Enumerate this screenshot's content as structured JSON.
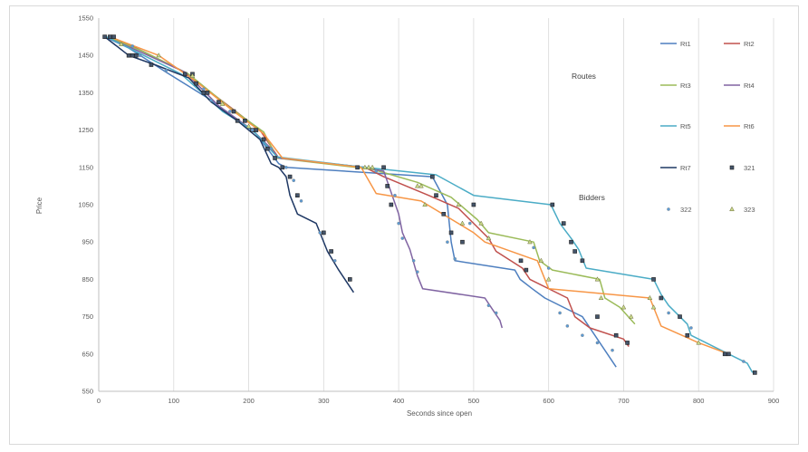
{
  "chart_data": {
    "type": "line",
    "title": "",
    "xlabel": "Seconds since open",
    "ylabel": "Price",
    "xlim": [
      0,
      900
    ],
    "ylim": [
      550,
      1550
    ],
    "x_ticks": [
      0,
      100,
      200,
      300,
      400,
      500,
      600,
      700,
      800,
      900
    ],
    "y_ticks": [
      550,
      650,
      750,
      850,
      950,
      1050,
      1150,
      1250,
      1350,
      1450,
      1550
    ],
    "grid": "vertical",
    "legend_position": "right",
    "annotations": [
      "Routes",
      "Bidders"
    ],
    "series": [
      {
        "name": "Rt1",
        "color": "#4e7fbf",
        "kind": "route",
        "points": [
          [
            8,
            1500
          ],
          [
            40,
            1470
          ],
          [
            90,
            1405
          ],
          [
            150,
            1330
          ],
          [
            210,
            1240
          ],
          [
            240,
            1160
          ],
          [
            250,
            1150
          ],
          [
            445,
            1125
          ],
          [
            465,
            1050
          ],
          [
            470,
            950
          ],
          [
            475,
            900
          ],
          [
            555,
            875
          ],
          [
            562,
            850
          ],
          [
            578,
            825
          ],
          [
            595,
            800
          ],
          [
            645,
            750
          ],
          [
            690,
            615
          ]
        ]
      },
      {
        "name": "Rt2",
        "color": "#c0504d",
        "kind": "route",
        "points": [
          [
            15,
            1500
          ],
          [
            50,
            1470
          ],
          [
            110,
            1410
          ],
          [
            170,
            1320
          ],
          [
            215,
            1250
          ],
          [
            240,
            1175
          ],
          [
            355,
            1150
          ],
          [
            380,
            1125
          ],
          [
            440,
            1075
          ],
          [
            480,
            1040
          ],
          [
            500,
            1000
          ],
          [
            520,
            960
          ],
          [
            530,
            925
          ],
          [
            565,
            880
          ],
          [
            575,
            850
          ],
          [
            625,
            800
          ],
          [
            635,
            750
          ],
          [
            655,
            720
          ],
          [
            700,
            690
          ],
          [
            707,
            670
          ]
        ]
      },
      {
        "name": "Rt3",
        "color": "#9bbb59",
        "kind": "route",
        "points": [
          [
            12,
            1500
          ],
          [
            60,
            1460
          ],
          [
            120,
            1400
          ],
          [
            175,
            1310
          ],
          [
            220,
            1245
          ],
          [
            238,
            1175
          ],
          [
            365,
            1145
          ],
          [
            425,
            1110
          ],
          [
            470,
            1070
          ],
          [
            505,
            1010
          ],
          [
            520,
            975
          ],
          [
            580,
            950
          ],
          [
            588,
            900
          ],
          [
            605,
            875
          ],
          [
            668,
            850
          ],
          [
            675,
            800
          ],
          [
            695,
            775
          ],
          [
            715,
            730
          ]
        ]
      },
      {
        "name": "Rt4",
        "color": "#8064a2",
        "kind": "route",
        "points": [
          [
            15,
            1495
          ],
          [
            55,
            1460
          ],
          [
            115,
            1405
          ],
          [
            160,
            1315
          ],
          [
            205,
            1250
          ],
          [
            230,
            1200
          ],
          [
            240,
            1175
          ],
          [
            355,
            1150
          ],
          [
            380,
            1140
          ],
          [
            400,
            1025
          ],
          [
            405,
            975
          ],
          [
            415,
            930
          ],
          [
            425,
            860
          ],
          [
            432,
            825
          ],
          [
            515,
            800
          ],
          [
            525,
            770
          ],
          [
            535,
            740
          ],
          [
            538,
            720
          ]
        ]
      },
      {
        "name": "Rt5",
        "color": "#4bacc6",
        "kind": "route",
        "points": [
          [
            10,
            1500
          ],
          [
            50,
            1460
          ],
          [
            110,
            1400
          ],
          [
            165,
            1300
          ],
          [
            205,
            1250
          ],
          [
            238,
            1178
          ],
          [
            355,
            1150
          ],
          [
            450,
            1130
          ],
          [
            500,
            1075
          ],
          [
            603,
            1050
          ],
          [
            615,
            1000
          ],
          [
            630,
            960
          ],
          [
            640,
            930
          ],
          [
            650,
            880
          ],
          [
            740,
            850
          ],
          [
            750,
            810
          ],
          [
            760,
            780
          ],
          [
            785,
            730
          ],
          [
            790,
            700
          ],
          [
            865,
            625
          ],
          [
            872,
            600
          ]
        ]
      },
      {
        "name": "Rt6",
        "color": "#f79646",
        "kind": "route",
        "points": [
          [
            15,
            1500
          ],
          [
            80,
            1450
          ],
          [
            130,
            1380
          ],
          [
            180,
            1300
          ],
          [
            220,
            1240
          ],
          [
            245,
            1175
          ],
          [
            350,
            1150
          ],
          [
            370,
            1080
          ],
          [
            430,
            1060
          ],
          [
            500,
            975
          ],
          [
            515,
            950
          ],
          [
            585,
            900
          ],
          [
            600,
            825
          ],
          [
            735,
            800
          ],
          [
            750,
            725
          ],
          [
            800,
            680
          ],
          [
            840,
            650
          ]
        ]
      },
      {
        "name": "Rt7",
        "color": "#1f3864",
        "kind": "route",
        "points": [
          [
            8,
            1500
          ],
          [
            40,
            1450
          ],
          [
            75,
            1425
          ],
          [
            120,
            1390
          ],
          [
            150,
            1325
          ],
          [
            185,
            1275
          ],
          [
            215,
            1225
          ],
          [
            230,
            1160
          ],
          [
            240,
            1150
          ],
          [
            250,
            1125
          ],
          [
            255,
            1075
          ],
          [
            265,
            1025
          ],
          [
            290,
            1000
          ],
          [
            305,
            925
          ],
          [
            320,
            875
          ],
          [
            340,
            815
          ]
        ]
      },
      {
        "name": "321",
        "color": "#44546a",
        "kind": "bidder",
        "marker": "square",
        "points": [
          [
            8,
            1500
          ],
          [
            15,
            1500
          ],
          [
            20,
            1500
          ],
          [
            40,
            1450
          ],
          [
            45,
            1450
          ],
          [
            50,
            1450
          ],
          [
            70,
            1425
          ],
          [
            115,
            1400
          ],
          [
            125,
            1400
          ],
          [
            130,
            1375
          ],
          [
            140,
            1350
          ],
          [
            145,
            1350
          ],
          [
            160,
            1325
          ],
          [
            180,
            1300
          ],
          [
            185,
            1275
          ],
          [
            195,
            1275
          ],
          [
            205,
            1250
          ],
          [
            210,
            1250
          ],
          [
            220,
            1225
          ],
          [
            225,
            1200
          ],
          [
            235,
            1175
          ],
          [
            245,
            1150
          ],
          [
            255,
            1125
          ],
          [
            265,
            1075
          ],
          [
            300,
            975
          ],
          [
            310,
            925
          ],
          [
            335,
            850
          ],
          [
            345,
            1150
          ],
          [
            380,
            1150
          ],
          [
            385,
            1100
          ],
          [
            390,
            1050
          ],
          [
            445,
            1125
          ],
          [
            450,
            1075
          ],
          [
            460,
            1025
          ],
          [
            470,
            975
          ],
          [
            485,
            950
          ],
          [
            500,
            1050
          ],
          [
            563,
            900
          ],
          [
            570,
            875
          ],
          [
            605,
            1050
          ],
          [
            620,
            1000
          ],
          [
            630,
            950
          ],
          [
            635,
            925
          ],
          [
            645,
            900
          ],
          [
            665,
            750
          ],
          [
            690,
            700
          ],
          [
            705,
            680
          ],
          [
            740,
            850
          ],
          [
            750,
            800
          ],
          [
            775,
            750
          ],
          [
            785,
            700
          ],
          [
            835,
            650
          ],
          [
            840,
            650
          ],
          [
            875,
            600
          ]
        ]
      },
      {
        "name": "322",
        "color": "#5b9bd5",
        "kind": "bidder",
        "marker": "circle",
        "points": [
          [
            30,
            1480
          ],
          [
            45,
            1475
          ],
          [
            55,
            1450
          ],
          [
            90,
            1410
          ],
          [
            140,
            1360
          ],
          [
            150,
            1330
          ],
          [
            175,
            1300
          ],
          [
            205,
            1250
          ],
          [
            230,
            1200
          ],
          [
            250,
            1150
          ],
          [
            260,
            1115
          ],
          [
            270,
            1060
          ],
          [
            295,
            975
          ],
          [
            315,
            900
          ],
          [
            370,
            1140
          ],
          [
            395,
            1075
          ],
          [
            400,
            1000
          ],
          [
            405,
            960
          ],
          [
            420,
            900
          ],
          [
            425,
            870
          ],
          [
            520,
            780
          ],
          [
            530,
            760
          ],
          [
            465,
            950
          ],
          [
            475,
            905
          ],
          [
            495,
            1000
          ],
          [
            520,
            960
          ],
          [
            580,
            935
          ],
          [
            600,
            880
          ],
          [
            615,
            760
          ],
          [
            625,
            725
          ],
          [
            645,
            700
          ],
          [
            665,
            680
          ],
          [
            685,
            660
          ],
          [
            760,
            760
          ],
          [
            790,
            720
          ],
          [
            860,
            630
          ]
        ]
      },
      {
        "name": "323",
        "color": "#70ad47",
        "kind": "bidder",
        "marker": "triangle",
        "points": [
          [
            30,
            1480
          ],
          [
            80,
            1450
          ],
          [
            125,
            1395
          ],
          [
            165,
            1320
          ],
          [
            200,
            1260
          ],
          [
            355,
            1150
          ],
          [
            360,
            1150
          ],
          [
            365,
            1150
          ],
          [
            425,
            1100
          ],
          [
            430,
            1100
          ],
          [
            435,
            1050
          ],
          [
            480,
            1050
          ],
          [
            485,
            1000
          ],
          [
            510,
            1000
          ],
          [
            520,
            960
          ],
          [
            575,
            950
          ],
          [
            590,
            900
          ],
          [
            600,
            850
          ],
          [
            665,
            850
          ],
          [
            670,
            800
          ],
          [
            700,
            775
          ],
          [
            710,
            750
          ],
          [
            735,
            800
          ],
          [
            740,
            775
          ],
          [
            800,
            680
          ]
        ]
      }
    ]
  }
}
